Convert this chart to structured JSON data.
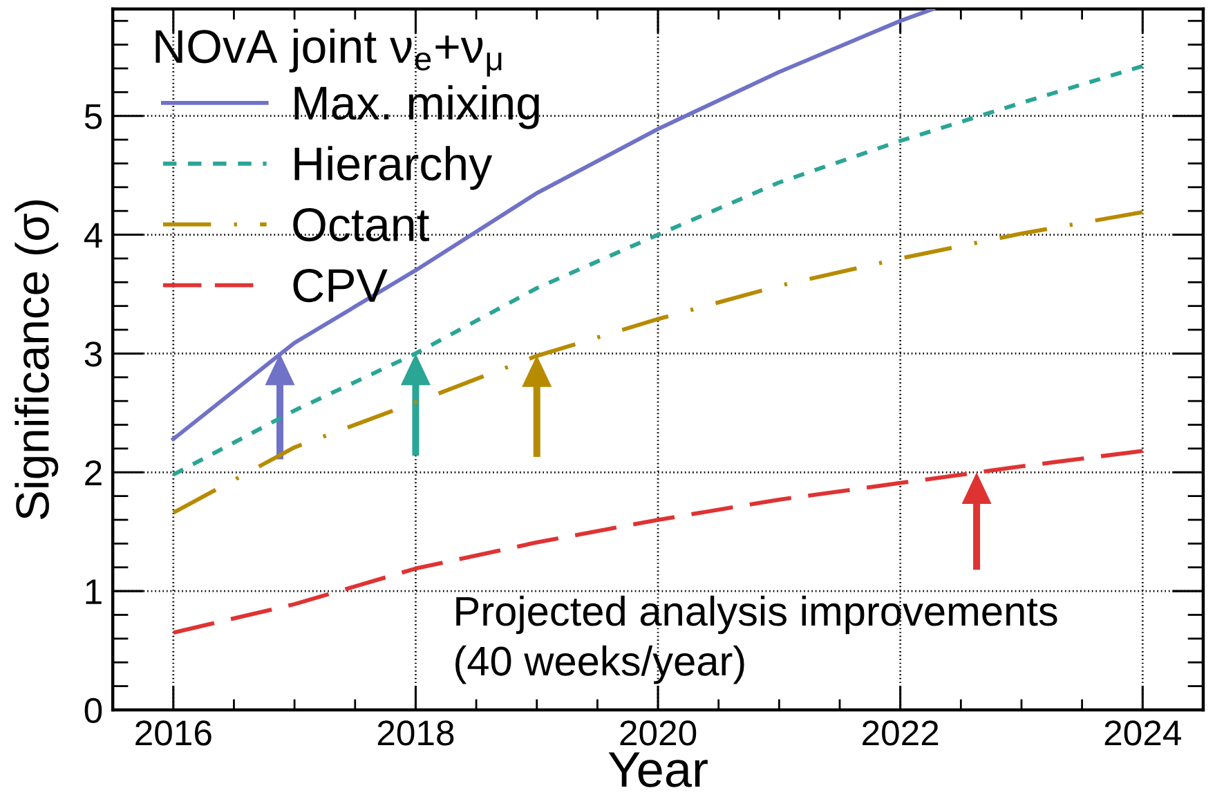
{
  "chart_data": {
    "type": "line",
    "xlabel": "Year",
    "ylabel": "Significance (σ)",
    "legend_title": "NOvA joint ν$_{e}$+ν$_{μ}$",
    "x": [
      2016,
      2017,
      2018,
      2019,
      2020,
      2021,
      2022,
      2023,
      2024
    ],
    "series": [
      {
        "name": "Max. mixing",
        "color": "#6f72c6",
        "line_style": "solid",
        "x": [
          2016,
          2017,
          2018,
          2019,
          2020,
          2021,
          2022,
          2022.27
        ],
        "values": [
          2.28,
          3.09,
          3.7,
          4.35,
          4.89,
          5.37,
          5.8,
          5.9
        ]
      },
      {
        "name": "Hierarchy",
        "color": "#2aa596",
        "line_style": "dotted",
        "values": [
          1.98,
          2.52,
          3.0,
          3.55,
          4.0,
          4.44,
          4.79,
          5.11,
          5.42
        ]
      },
      {
        "name": "Octant",
        "color": "#b78b00",
        "line_style": "dashdot",
        "values": [
          1.66,
          2.21,
          2.59,
          2.98,
          3.29,
          3.57,
          3.8,
          4.01,
          4.19
        ]
      },
      {
        "name": "CPV",
        "color": "#df3333",
        "line_style": "dashed",
        "values": [
          0.65,
          0.89,
          1.19,
          1.41,
          1.6,
          1.77,
          1.91,
          2.05,
          2.18
        ]
      }
    ],
    "xlim": [
      2015.5,
      2024.5
    ],
    "xticks": [
      2016,
      2018,
      2020,
      2022,
      2024
    ],
    "ylim": [
      0,
      5.9
    ],
    "yticks": [
      0,
      1,
      2,
      3,
      4,
      5
    ],
    "grid": true,
    "legend": "top left",
    "annotations": [
      "Projected analysis improvements\n(40 weeks/year)"
    ]
  }
}
